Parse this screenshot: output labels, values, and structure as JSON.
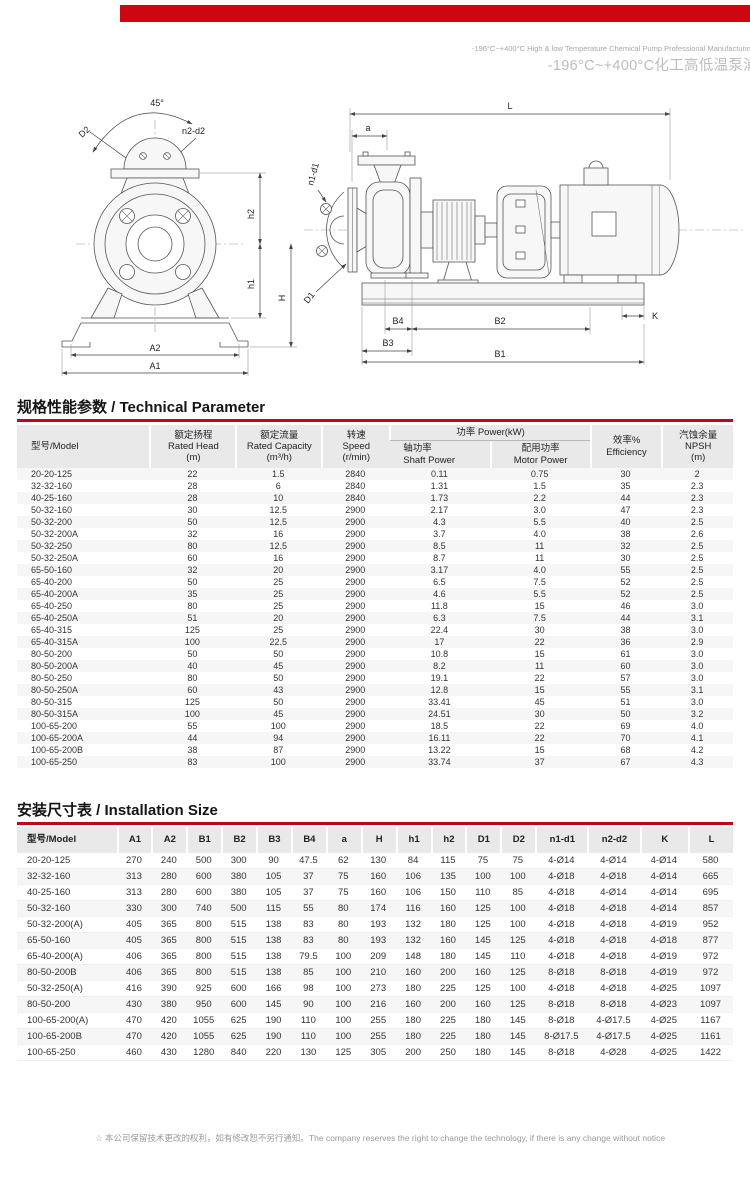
{
  "header": {
    "banner_color": "#cc0712",
    "line1": "-196°C~+400°C High & low Temperature Chemical Pump Professional Manufacturing",
    "line2": "-196°C~+400°C化工高低温泵浦"
  },
  "drawings": {
    "front": {
      "angle": "45°",
      "d2": "D2",
      "n2d2": "n2-d2",
      "h2": "h2",
      "h1": "h1",
      "h": "H",
      "a2": "A2",
      "a1": "A1"
    },
    "side": {
      "l": "L",
      "a": "a",
      "n1d1": "n1-d1",
      "d1": "D1",
      "b4": "B4",
      "b2": "B2",
      "b3": "B3",
      "b1": "B1",
      "k": "K"
    }
  },
  "technical_parameter": {
    "title": "规格性能参数 / Technical Parameter",
    "columns": {
      "model": "型号/Model",
      "rated_head": {
        "zh": "额定扬程",
        "en": "Rated Head",
        "unit": "(m)"
      },
      "rated_capacity": {
        "zh": "额定流量",
        "en": "Rated Capacity",
        "unit": "(m³/h)"
      },
      "speed": {
        "zh": "转速",
        "en": "Speed",
        "unit": "(r/min)"
      },
      "power_group": "功率 Power(kW)",
      "shaft_power": {
        "zh": "轴功率",
        "en": "Shaft Power"
      },
      "motor_power": {
        "zh": "配用功率",
        "en": "Motor Power"
      },
      "efficiency": {
        "zh": "效率%",
        "en": "Efficiency"
      },
      "npsh": {
        "zh": "汽蚀余量",
        "en": "NPSH",
        "unit": "(m)"
      }
    },
    "rows": [
      [
        "20-20-125",
        "22",
        "1.5",
        "2840",
        "0.11",
        "0.75",
        "30",
        "2"
      ],
      [
        "32-32-160",
        "28",
        "6",
        "2840",
        "1.31",
        "1.5",
        "35",
        "2.3"
      ],
      [
        "40-25-160",
        "28",
        "10",
        "2840",
        "1.73",
        "2.2",
        "44",
        "2.3"
      ],
      [
        "50-32-160",
        "30",
        "12.5",
        "2900",
        "2.17",
        "3.0",
        "47",
        "2.3"
      ],
      [
        "50-32-200",
        "50",
        "12.5",
        "2900",
        "4.3",
        "5.5",
        "40",
        "2.5"
      ],
      [
        "50-32-200A",
        "32",
        "16",
        "2900",
        "3.7",
        "4.0",
        "38",
        "2.6"
      ],
      [
        "50-32-250",
        "80",
        "12.5",
        "2900",
        "8.5",
        "11",
        "32",
        "2.5"
      ],
      [
        "50-32-250A",
        "60",
        "16",
        "2900",
        "8.7",
        "11",
        "30",
        "2.5"
      ],
      [
        "65-50-160",
        "32",
        "20",
        "2900",
        "3.17",
        "4.0",
        "55",
        "2.5"
      ],
      [
        "65-40-200",
        "50",
        "25",
        "2900",
        "6.5",
        "7.5",
        "52",
        "2.5"
      ],
      [
        "65-40-200A",
        "35",
        "25",
        "2900",
        "4.6",
        "5.5",
        "52",
        "2.5"
      ],
      [
        "65-40-250",
        "80",
        "25",
        "2900",
        "11.8",
        "15",
        "46",
        "3.0"
      ],
      [
        "65-40-250A",
        "51",
        "20",
        "2900",
        "6.3",
        "7.5",
        "44",
        "3.1"
      ],
      [
        "65-40-315",
        "125",
        "25",
        "2900",
        "22.4",
        "30",
        "38",
        "3.0"
      ],
      [
        "65-40-315A",
        "100",
        "22.5",
        "2900",
        "17",
        "22",
        "36",
        "2.9"
      ],
      [
        "80-50-200",
        "50",
        "50",
        "2900",
        "10.8",
        "15",
        "61",
        "3.0"
      ],
      [
        "80-50-200A",
        "40",
        "45",
        "2900",
        "8.2",
        "11",
        "60",
        "3.0"
      ],
      [
        "80-50-250",
        "80",
        "50",
        "2900",
        "19.1",
        "22",
        "57",
        "3.0"
      ],
      [
        "80-50-250A",
        "60",
        "43",
        "2900",
        "12.8",
        "15",
        "55",
        "3.1"
      ],
      [
        "80-50-315",
        "125",
        "50",
        "2900",
        "33.41",
        "45",
        "51",
        "3.0"
      ],
      [
        "80-50-315A",
        "100",
        "45",
        "2900",
        "24.51",
        "30",
        "50",
        "3.2"
      ],
      [
        "100-65-200",
        "55",
        "100",
        "2900",
        "18.5",
        "22",
        "69",
        "4.0"
      ],
      [
        "100-65-200A",
        "44",
        "94",
        "2900",
        "16.11",
        "22",
        "70",
        "4.1"
      ],
      [
        "100-65-200B",
        "38",
        "87",
        "2900",
        "13.22",
        "15",
        "68",
        "4.2"
      ],
      [
        "100-65-250",
        "83",
        "100",
        "2900",
        "33.74",
        "37",
        "67",
        "4.3"
      ]
    ]
  },
  "installation_size": {
    "title": "安装尺寸表 / Installation Size",
    "columns": [
      "型号/Model",
      "A1",
      "A2",
      "B1",
      "B2",
      "B3",
      "B4",
      "a",
      "H",
      "h1",
      "h2",
      "D1",
      "D2",
      "n1-d1",
      "n2-d2",
      "K",
      "L"
    ],
    "rows": [
      [
        "20-20-125",
        "270",
        "240",
        "500",
        "300",
        "90",
        "47.5",
        "62",
        "130",
        "84",
        "115",
        "75",
        "75",
        "4-Ø14",
        "4-Ø14",
        "4-Ø14",
        "580"
      ],
      [
        "32-32-160",
        "313",
        "280",
        "600",
        "380",
        "105",
        "37",
        "75",
        "160",
        "106",
        "135",
        "100",
        "100",
        "4-Ø18",
        "4-Ø18",
        "4-Ø14",
        "665"
      ],
      [
        "40-25-160",
        "313",
        "280",
        "600",
        "380",
        "105",
        "37",
        "75",
        "160",
        "106",
        "150",
        "110",
        "85",
        "4-Ø18",
        "4-Ø14",
        "4-Ø14",
        "695"
      ],
      [
        "50-32-160",
        "330",
        "300",
        "740",
        "500",
        "115",
        "55",
        "80",
        "174",
        "116",
        "160",
        "125",
        "100",
        "4-Ø18",
        "4-Ø18",
        "4-Ø14",
        "857"
      ],
      [
        "50-32-200(A)",
        "405",
        "365",
        "800",
        "515",
        "138",
        "83",
        "80",
        "193",
        "132",
        "180",
        "125",
        "100",
        "4-Ø18",
        "4-Ø18",
        "4-Ø19",
        "952"
      ],
      [
        "65-50-160",
        "405",
        "365",
        "800",
        "515",
        "138",
        "83",
        "80",
        "193",
        "132",
        "160",
        "145",
        "125",
        "4-Ø18",
        "4-Ø18",
        "4-Ø18",
        "877"
      ],
      [
        "65-40-200(A)",
        "406",
        "365",
        "800",
        "515",
        "138",
        "79.5",
        "100",
        "209",
        "148",
        "180",
        "145",
        "110",
        "4-Ø18",
        "4-Ø18",
        "4-Ø19",
        "972"
      ],
      [
        "80-50-200B",
        "406",
        "365",
        "800",
        "515",
        "138",
        "85",
        "100",
        "210",
        "160",
        "200",
        "160",
        "125",
        "8-Ø18",
        "8-Ø18",
        "4-Ø19",
        "972"
      ],
      [
        "50-32-250(A)",
        "416",
        "390",
        "925",
        "600",
        "166",
        "98",
        "100",
        "273",
        "180",
        "225",
        "125",
        "100",
        "4-Ø18",
        "4-Ø18",
        "4-Ø25",
        "1097"
      ],
      [
        "80-50-200",
        "430",
        "380",
        "950",
        "600",
        "145",
        "90",
        "100",
        "216",
        "160",
        "200",
        "160",
        "125",
        "8-Ø18",
        "8-Ø18",
        "4-Ø23",
        "1097"
      ],
      [
        "100-65-200(A)",
        "470",
        "420",
        "1055",
        "625",
        "190",
        "110",
        "100",
        "255",
        "180",
        "225",
        "180",
        "145",
        "8-Ø18",
        "4-Ø17.5",
        "4-Ø25",
        "1167"
      ],
      [
        "100-65-200B",
        "470",
        "420",
        "1055",
        "625",
        "190",
        "110",
        "100",
        "255",
        "180",
        "225",
        "180",
        "145",
        "8-Ø17.5",
        "4-Ø17.5",
        "4-Ø25",
        "1161"
      ],
      [
        "100-65-250",
        "460",
        "430",
        "1280",
        "840",
        "220",
        "130",
        "125",
        "305",
        "200",
        "250",
        "180",
        "145",
        "8-Ø18",
        "4-Ø28",
        "4-Ø25",
        "1422"
      ]
    ]
  },
  "footer": {
    "note": "☆ 本公司保留技术更改的权利，如有修改恕不另行通知。The company reserves the right to change the technology, if there is any change without notice"
  }
}
